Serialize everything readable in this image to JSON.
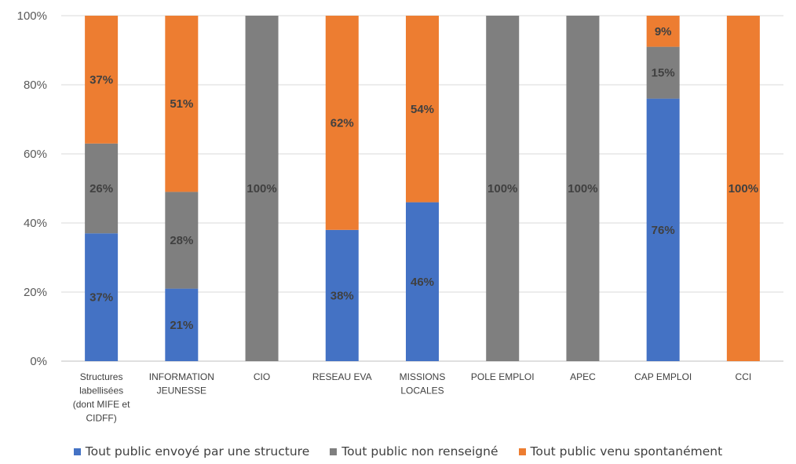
{
  "chart_data": {
    "type": "bar",
    "stacked": true,
    "percent": true,
    "categories": [
      [
        "Structures",
        "labellisées",
        "(dont MIFE et",
        "CIDFF)"
      ],
      [
        "INFORMATION",
        "JEUNESSE"
      ],
      [
        "CIO"
      ],
      [
        "RESEAU EVA"
      ],
      [
        "MISSIONS",
        "LOCALES"
      ],
      [
        "POLE EMPLOI"
      ],
      [
        "APEC"
      ],
      [
        "CAP EMPLOI"
      ],
      [
        "CCI"
      ]
    ],
    "series": [
      {
        "name": "Tout public envoyé par une structure",
        "color": "#4472C4",
        "values": [
          37,
          21,
          0,
          38,
          46,
          0,
          0,
          76,
          0
        ],
        "labels": [
          "37%",
          "21%",
          "",
          "38%",
          "46%",
          "",
          "",
          "76%",
          ""
        ]
      },
      {
        "name": "Tout public non renseigné",
        "color": "#7F7F7F",
        "values": [
          26,
          28,
          100,
          0,
          0,
          100,
          100,
          15,
          0
        ],
        "labels": [
          "26%",
          "28%",
          "100%",
          "",
          "",
          "100%",
          "100%",
          "15%",
          ""
        ]
      },
      {
        "name": "Tout public venu spontanément",
        "color": "#ED7D31",
        "values": [
          37,
          51,
          0,
          62,
          54,
          0,
          0,
          9,
          100
        ],
        "labels": [
          "37%",
          "51%",
          "",
          "62%",
          "54%",
          "",
          "",
          "9%",
          "100%"
        ]
      }
    ],
    "y_ticks": [
      "0%",
      "20%",
      "40%",
      "60%",
      "80%",
      "100%"
    ],
    "ylim": [
      0,
      100
    ],
    "grid": true,
    "legend_position": "bottom",
    "title": "",
    "xlabel": "",
    "ylabel": ""
  }
}
